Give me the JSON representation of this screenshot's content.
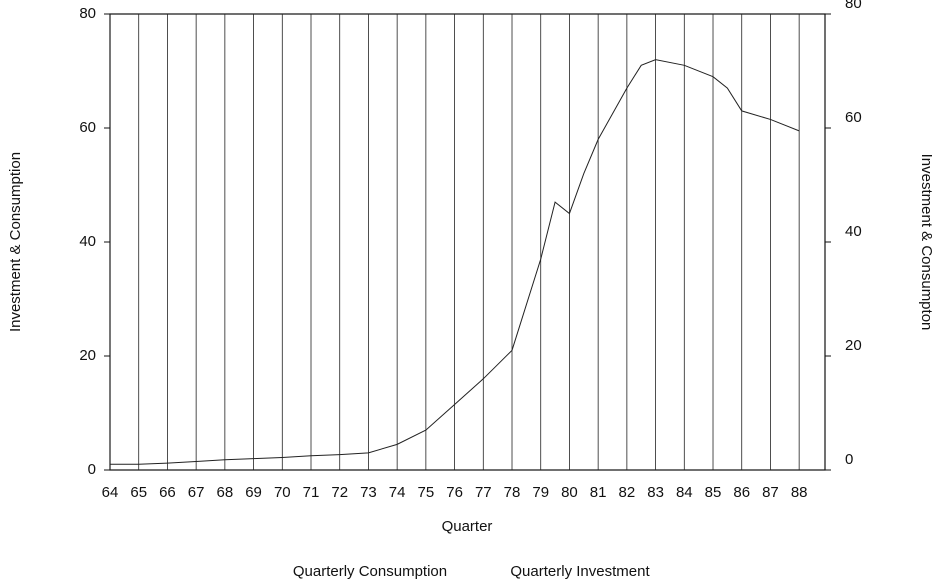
{
  "chart_data": {
    "type": "line",
    "x_label": "Quarter",
    "y_label": "Investment & Consumption",
    "y2_label": "Investment & Consumpton",
    "x": [
      64,
      65,
      66,
      67,
      68,
      69,
      70,
      71,
      72,
      73,
      74,
      75,
      76,
      77,
      78,
      79,
      79.5,
      80,
      80.5,
      81,
      82,
      82.5,
      83,
      84,
      85,
      85.5,
      86,
      87,
      88
    ],
    "series": [
      {
        "name": "Quarterly Consumption",
        "color": "#222222",
        "values": [
          1,
          1,
          1.2,
          1.5,
          1.8,
          2,
          2.2,
          2.5,
          2.7,
          3,
          4.5,
          7,
          11.5,
          16,
          21,
          37,
          47,
          45,
          52,
          58,
          67,
          71,
          72,
          71,
          69,
          67,
          63,
          61.5,
          59.5
        ]
      },
      {
        "name": "Quarterly Investment",
        "color": "#222222",
        "values": [
          null,
          null,
          null,
          null,
          null,
          null,
          null,
          null,
          null,
          null,
          null,
          null,
          null,
          null,
          null,
          null,
          null,
          null,
          null,
          null,
          null,
          null,
          null,
          null,
          null,
          null,
          null,
          null,
          null
        ]
      }
    ],
    "xlim": [
      64,
      88.9
    ],
    "xticks": [
      64,
      65,
      66,
      67,
      68,
      69,
      70,
      71,
      72,
      73,
      74,
      75,
      76,
      77,
      78,
      79,
      80,
      81,
      82,
      83,
      84,
      85,
      86,
      87,
      88
    ],
    "ylim": [
      0,
      80
    ],
    "yticks": [
      0,
      20,
      40,
      60,
      80
    ],
    "y2lim": [
      0,
      80
    ],
    "y2ticks": [
      0,
      20,
      40,
      60,
      80
    ],
    "grid": true
  }
}
